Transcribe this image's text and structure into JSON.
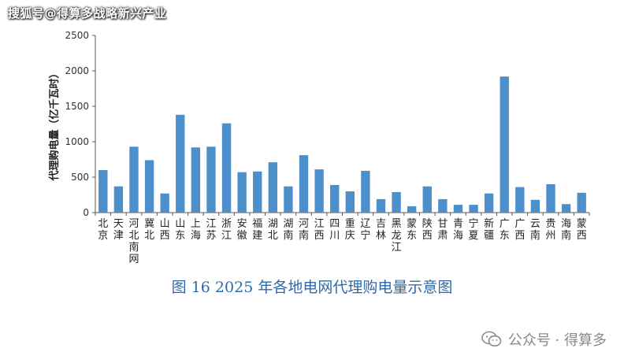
{
  "watermark_top": "搜狐号@得算多战略新兴产业",
  "caption": "图 16    2025 年各地电网代理购电量示意图",
  "watermark_bottom": {
    "text": "公众号 · 得算多",
    "icon": "wechat-icon"
  },
  "colors": {
    "bar": "#4d8fcb",
    "axis": "#595959",
    "caption": "#2e6aa8"
  },
  "chart_data": {
    "type": "bar",
    "ylabel": "代理购电量（亿千瓦时）",
    "xlabel": "",
    "ylim": [
      0,
      2500
    ],
    "yticks": [
      "0",
      "500",
      "1000",
      "1500",
      "2000",
      "2500"
    ],
    "grid": false,
    "categories": [
      "北京",
      "天津",
      "河北南网",
      "冀北",
      "山西",
      "山东",
      "上海",
      "江苏",
      "浙江",
      "安徽",
      "福建",
      "湖北",
      "湖南",
      "河南",
      "江西",
      "四川",
      "重庆",
      "辽宁",
      "吉林",
      "黑龙江",
      "蒙东",
      "陕西",
      "甘肃",
      "青海",
      "宁夏",
      "新疆",
      "广东",
      "广西",
      "云南",
      "贵州",
      "海南",
      "蒙西"
    ],
    "values": [
      600,
      370,
      930,
      740,
      270,
      1380,
      920,
      930,
      1260,
      570,
      580,
      710,
      370,
      810,
      610,
      390,
      300,
      590,
      190,
      290,
      90,
      370,
      190,
      110,
      110,
      270,
      1920,
      360,
      180,
      400,
      120,
      280
    ]
  }
}
